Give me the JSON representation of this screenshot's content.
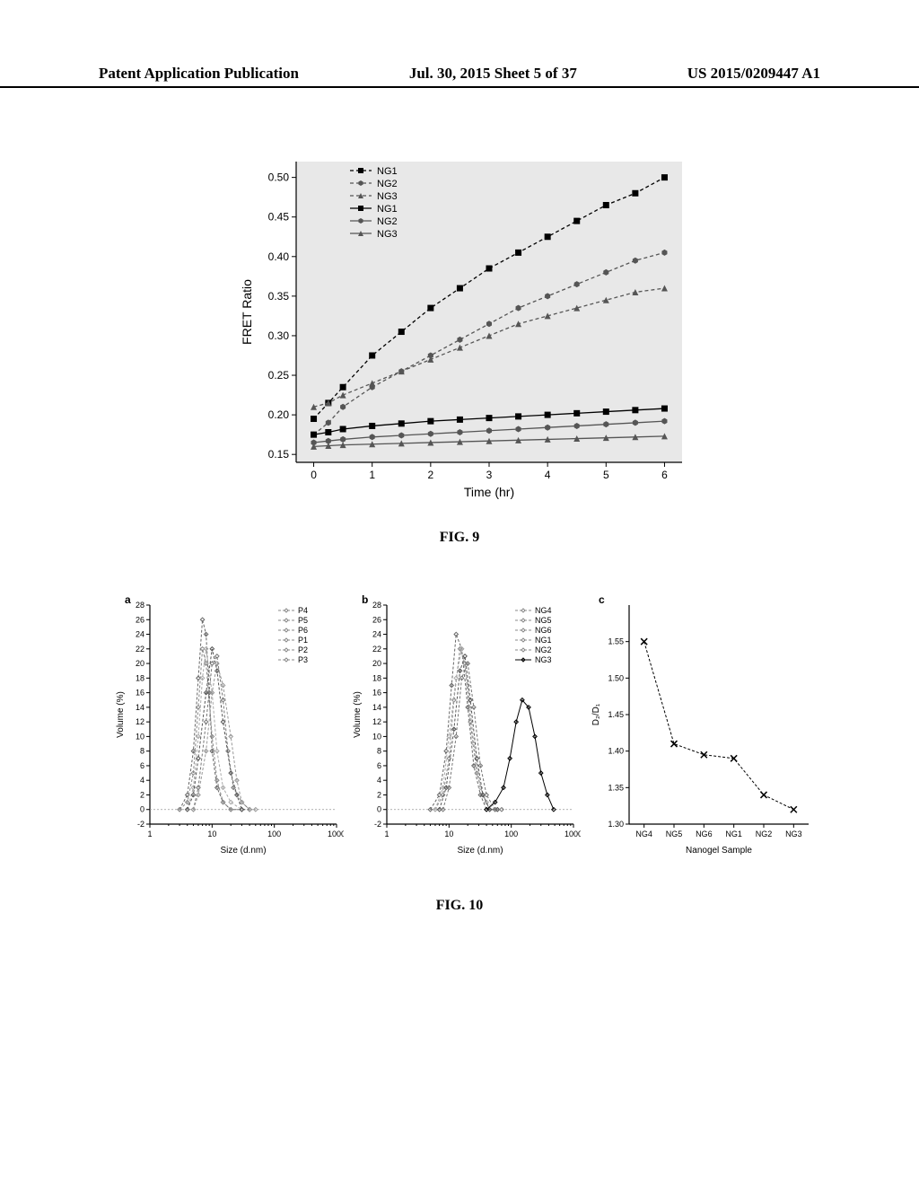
{
  "header": {
    "left": "Patent Application Publication",
    "mid": "Jul. 30, 2015  Sheet 5 of 37",
    "right": "US 2015/0209447 A1"
  },
  "fig9": {
    "caption": "FIG. 9",
    "type": "line",
    "xlabel": "Time (hr)",
    "ylabel": "FRET Ratio",
    "xlim": [
      -0.3,
      6.3
    ],
    "ylim": [
      0.14,
      0.52
    ],
    "xticks": [
      0,
      1,
      2,
      3,
      4,
      5,
      6
    ],
    "yticks": [
      0.15,
      0.2,
      0.25,
      0.3,
      0.35,
      0.4,
      0.45,
      0.5
    ],
    "background_color": "#e8e8e8",
    "legend": [
      {
        "label": "NG1",
        "marker": "square",
        "color": "#000000",
        "dash": "4,3"
      },
      {
        "label": "NG2",
        "marker": "hex",
        "color": "#555555",
        "dash": "4,3"
      },
      {
        "label": "NG3",
        "marker": "triangle",
        "color": "#555555",
        "dash": "4,3"
      },
      {
        "label": "NG1",
        "marker": "square",
        "color": "#000000",
        "dash": "none"
      },
      {
        "label": "NG2",
        "marker": "hex",
        "color": "#555555",
        "dash": "none"
      },
      {
        "label": "NG3",
        "marker": "triangle",
        "color": "#555555",
        "dash": "none"
      }
    ],
    "series": [
      {
        "name": "NG1-dash",
        "marker": "square",
        "color": "#000000",
        "dash": "4,3",
        "x": [
          0,
          0.25,
          0.5,
          1,
          1.5,
          2,
          2.5,
          3,
          3.5,
          4,
          4.5,
          5,
          5.5,
          6
        ],
        "y": [
          0.195,
          0.215,
          0.235,
          0.275,
          0.305,
          0.335,
          0.36,
          0.385,
          0.405,
          0.425,
          0.445,
          0.465,
          0.48,
          0.5
        ]
      },
      {
        "name": "NG2-dash",
        "marker": "hex",
        "color": "#555555",
        "dash": "4,3",
        "x": [
          0,
          0.25,
          0.5,
          1,
          1.5,
          2,
          2.5,
          3,
          3.5,
          4,
          4.5,
          5,
          5.5,
          6
        ],
        "y": [
          0.175,
          0.19,
          0.21,
          0.235,
          0.255,
          0.275,
          0.295,
          0.315,
          0.335,
          0.35,
          0.365,
          0.38,
          0.395,
          0.405
        ]
      },
      {
        "name": "NG3-dash",
        "marker": "triangle",
        "color": "#555555",
        "dash": "4,3",
        "x": [
          0,
          0.25,
          0.5,
          1,
          1.5,
          2,
          2.5,
          3,
          3.5,
          4,
          4.5,
          5,
          5.5,
          6
        ],
        "y": [
          0.21,
          0.215,
          0.225,
          0.24,
          0.255,
          0.27,
          0.285,
          0.3,
          0.315,
          0.325,
          0.335,
          0.345,
          0.355,
          0.36
        ]
      },
      {
        "name": "NG1-solid",
        "marker": "square",
        "color": "#000000",
        "dash": "none",
        "x": [
          0,
          0.25,
          0.5,
          1,
          1.5,
          2,
          2.5,
          3,
          3.5,
          4,
          4.5,
          5,
          5.5,
          6
        ],
        "y": [
          0.175,
          0.178,
          0.182,
          0.186,
          0.189,
          0.192,
          0.194,
          0.196,
          0.198,
          0.2,
          0.202,
          0.204,
          0.206,
          0.208
        ]
      },
      {
        "name": "NG2-solid",
        "marker": "hex",
        "color": "#555555",
        "dash": "none",
        "x": [
          0,
          0.25,
          0.5,
          1,
          1.5,
          2,
          2.5,
          3,
          3.5,
          4,
          4.5,
          5,
          5.5,
          6
        ],
        "y": [
          0.165,
          0.167,
          0.169,
          0.172,
          0.174,
          0.176,
          0.178,
          0.18,
          0.182,
          0.184,
          0.186,
          0.188,
          0.19,
          0.192
        ]
      },
      {
        "name": "NG3-solid",
        "marker": "triangle",
        "color": "#555555",
        "dash": "none",
        "x": [
          0,
          0.25,
          0.5,
          1,
          1.5,
          2,
          2.5,
          3,
          3.5,
          4,
          4.5,
          5,
          5.5,
          6
        ],
        "y": [
          0.16,
          0.161,
          0.162,
          0.163,
          0.164,
          0.165,
          0.166,
          0.167,
          0.168,
          0.169,
          0.17,
          0.171,
          0.172,
          0.173
        ]
      }
    ]
  },
  "fig10": {
    "caption": "FIG. 10",
    "panels": {
      "a": {
        "letter": "a",
        "type": "line",
        "xlabel": "Size (d.nm)",
        "ylabel": "Volume (%)",
        "xscale": "log",
        "xlim": [
          1,
          1000
        ],
        "ylim": [
          -2,
          28
        ],
        "xticks": [
          1,
          10,
          100,
          1000
        ],
        "yticks": [
          -2,
          0,
          2,
          4,
          6,
          8,
          10,
          12,
          14,
          16,
          18,
          20,
          22,
          24,
          26,
          28
        ],
        "legend": [
          {
            "label": "P4",
            "marker": "diamond",
            "color": "#888",
            "dash": "3,2"
          },
          {
            "label": "P5",
            "marker": "diamond",
            "color": "#888",
            "dash": "3,2"
          },
          {
            "label": "P6",
            "marker": "diamond",
            "color": "#888",
            "dash": "3,2"
          },
          {
            "label": "P1",
            "marker": "diamond",
            "color": "#888",
            "dash": "3,2"
          },
          {
            "label": "P2",
            "marker": "diamond",
            "color": "#888",
            "dash": "3,2"
          },
          {
            "label": "P3",
            "marker": "diamond",
            "color": "#888",
            "dash": "3,2"
          }
        ],
        "series": [
          {
            "name": "P4",
            "marker": "diamond",
            "color": "#666",
            "dash": "3,2",
            "x": [
              3,
              4,
              5,
              6,
              7,
              8,
              9,
              10,
              12,
              15,
              20,
              30
            ],
            "y": [
              0,
              2,
              8,
              18,
              26,
              24,
              16,
              8,
              3,
              1,
              0,
              0
            ]
          },
          {
            "name": "P5",
            "marker": "diamond",
            "color": "#888",
            "dash": "3,2",
            "x": [
              3,
              4,
              5,
              6,
              7,
              8,
              10,
              12,
              15,
              20,
              30
            ],
            "y": [
              0,
              1,
              5,
              14,
              22,
              20,
              10,
              4,
              1,
              0,
              0
            ]
          },
          {
            "name": "P6",
            "marker": "diamond",
            "color": "#aaa",
            "dash": "3,2",
            "x": [
              4,
              5,
              6,
              7,
              8,
              10,
              12,
              15,
              20,
              30,
              40
            ],
            "y": [
              0,
              3,
              10,
              18,
              22,
              16,
              8,
              3,
              1,
              0,
              0
            ]
          },
          {
            "name": "P1",
            "marker": "diamond",
            "color": "#555",
            "dash": "3,2",
            "x": [
              4,
              5,
              6,
              8,
              10,
              12,
              15,
              20,
              25,
              30,
              40
            ],
            "y": [
              0,
              2,
              7,
              16,
              22,
              19,
              12,
              5,
              2,
              0,
              0
            ]
          },
          {
            "name": "P2",
            "marker": "diamond",
            "color": "#777",
            "dash": "3,2",
            "x": [
              5,
              6,
              8,
              10,
              12,
              15,
              18,
              22,
              30,
              40
            ],
            "y": [
              0,
              3,
              12,
              20,
              21,
              15,
              8,
              3,
              1,
              0
            ]
          },
          {
            "name": "P3",
            "marker": "diamond",
            "color": "#999",
            "dash": "3,2",
            "x": [
              5,
              6,
              8,
              10,
              12,
              15,
              20,
              25,
              30,
              40,
              50
            ],
            "y": [
              0,
              2,
              8,
              16,
              20,
              17,
              10,
              4,
              1,
              0,
              0
            ]
          }
        ]
      },
      "b": {
        "letter": "b",
        "type": "line",
        "xlabel": "Size (d.nm)",
        "ylabel": "Volume (%)",
        "xscale": "log",
        "xlim": [
          1,
          1000
        ],
        "ylim": [
          -2,
          28
        ],
        "xticks": [
          1,
          10,
          100,
          1000
        ],
        "yticks": [
          -2,
          0,
          2,
          4,
          6,
          8,
          10,
          12,
          14,
          16,
          18,
          20,
          22,
          24,
          26,
          28
        ],
        "legend": [
          {
            "label": "NG4",
            "marker": "diamond",
            "color": "#888",
            "dash": "3,2"
          },
          {
            "label": "NG5",
            "marker": "diamond",
            "color": "#888",
            "dash": "3,2"
          },
          {
            "label": "NG6",
            "marker": "diamond",
            "color": "#888",
            "dash": "3,2"
          },
          {
            "label": "NG1",
            "marker": "diamond",
            "color": "#888",
            "dash": "3,2"
          },
          {
            "label": "NG2",
            "marker": "diamond",
            "color": "#888",
            "dash": "3,2"
          },
          {
            "label": "NG3",
            "marker": "diamond",
            "color": "#000",
            "dash": "none"
          }
        ],
        "series": [
          {
            "name": "NG4",
            "marker": "diamond",
            "color": "#666",
            "dash": "3,2",
            "x": [
              5,
              7,
              9,
              11,
              13,
              16,
              20,
              25,
              32,
              40,
              55
            ],
            "y": [
              0,
              2,
              8,
              17,
              24,
              22,
              14,
              6,
              2,
              0,
              0
            ]
          },
          {
            "name": "NG5",
            "marker": "diamond",
            "color": "#888",
            "dash": "3,2",
            "x": [
              6,
              8,
              10,
              12,
              15,
              18,
              22,
              28,
              35,
              45,
              60
            ],
            "y": [
              0,
              2,
              7,
              15,
              22,
              20,
              12,
              5,
              2,
              0,
              0
            ]
          },
          {
            "name": "NG6",
            "marker": "diamond",
            "color": "#aaa",
            "dash": "3,2",
            "x": [
              6,
              8,
              10,
              13,
              16,
              20,
              25,
              32,
              40,
              55
            ],
            "y": [
              0,
              3,
              10,
              18,
              22,
              17,
              9,
              3,
              1,
              0
            ]
          },
          {
            "name": "NG1",
            "marker": "diamond",
            "color": "#555",
            "dash": "3,2",
            "x": [
              7,
              9,
              12,
              15,
              18,
              22,
              28,
              35,
              45,
              60
            ],
            "y": [
              0,
              3,
              11,
              19,
              21,
              15,
              7,
              2,
              0,
              0
            ]
          },
          {
            "name": "NG2",
            "marker": "diamond",
            "color": "#777",
            "dash": "3,2",
            "x": [
              8,
              10,
              13,
              16,
              20,
              25,
              32,
              40,
              55,
              70
            ],
            "y": [
              0,
              3,
              10,
              18,
              20,
              14,
              6,
              2,
              0,
              0
            ]
          },
          {
            "name": "NG3",
            "marker": "diamond",
            "color": "#000",
            "dash": "none",
            "x": [
              40,
              55,
              75,
              95,
              120,
              150,
              190,
              240,
              300,
              380,
              480
            ],
            "y": [
              0,
              1,
              3,
              7,
              12,
              15,
              14,
              10,
              5,
              2,
              0
            ]
          }
        ]
      },
      "c": {
        "letter": "c",
        "type": "scatter",
        "xlabel": "Nanogel Sample",
        "ylabel": "D₂/D₁",
        "categories": [
          "NG4",
          "NG5",
          "NG6",
          "NG1",
          "NG2",
          "NG3"
        ],
        "ylim": [
          1.3,
          1.6
        ],
        "yticks": [
          1.3,
          1.35,
          1.4,
          1.45,
          1.5,
          1.55
        ],
        "marker": "x",
        "color": "#000000",
        "dash": "3,2",
        "values": [
          1.55,
          1.41,
          1.395,
          1.39,
          1.34,
          1.32
        ]
      }
    }
  }
}
